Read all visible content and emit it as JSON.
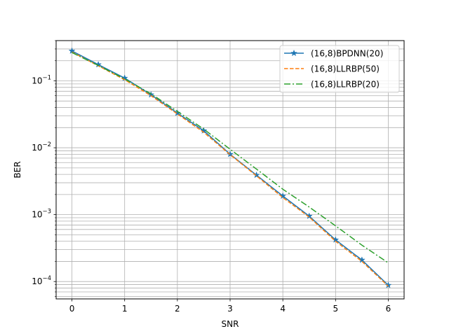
{
  "chart_data": {
    "type": "line",
    "title": "",
    "xlabel": "SNR",
    "ylabel": "BER",
    "xlim": [
      -0.3,
      6.3
    ],
    "ylim": [
      5.5e-05,
      0.4
    ],
    "yscale": "log",
    "grid": true,
    "grid_minor_y": true,
    "legend_position": "top-right",
    "x_ticks": [
      0,
      1,
      2,
      3,
      4,
      5,
      6
    ],
    "x_tick_labels": [
      "0",
      "1",
      "2",
      "3",
      "4",
      "5",
      "6"
    ],
    "y_ticks": [
      0.0001,
      0.001,
      0.01,
      0.1
    ],
    "y_tick_labels": [
      {
        "base": "10",
        "exp": "−4"
      },
      {
        "base": "10",
        "exp": "−3"
      },
      {
        "base": "10",
        "exp": "−2"
      },
      {
        "base": "10",
        "exp": "−1"
      }
    ],
    "series": [
      {
        "name": "(16,8)BPDNN(20)",
        "color": "#1f77b4",
        "linestyle": "solid",
        "marker": "star",
        "x": [
          0,
          0.5,
          1,
          1.5,
          2,
          2.5,
          3,
          3.5,
          4,
          4.5,
          5,
          5.5,
          6
        ],
        "y": [
          0.28,
          0.175,
          0.11,
          0.062,
          0.033,
          0.018,
          0.008,
          0.0039,
          0.0019,
          0.00095,
          0.00042,
          0.00021,
          8.8e-05
        ]
      },
      {
        "name": "(16,8)LLRBP(50)",
        "color": "#ff7f0e",
        "linestyle": "dashed",
        "marker": "none",
        "x": [
          0,
          0.5,
          1,
          1.5,
          2,
          2.5,
          3,
          3.5,
          4,
          4.5,
          5,
          5.5,
          6
        ],
        "y": [
          0.27,
          0.168,
          0.104,
          0.06,
          0.032,
          0.017,
          0.0079,
          0.0038,
          0.0018,
          0.00092,
          0.0004,
          0.0002,
          8.5e-05
        ]
      },
      {
        "name": "(16,8)LLRBP(20)",
        "color": "#2ca02c",
        "linestyle": "dashdot",
        "marker": "none",
        "x": [
          0,
          0.5,
          1,
          1.5,
          2,
          2.5,
          3,
          3.5,
          4,
          4.5,
          5,
          5.5,
          6
        ],
        "y": [
          0.265,
          0.17,
          0.107,
          0.064,
          0.035,
          0.019,
          0.0095,
          0.0048,
          0.0024,
          0.0013,
          0.00068,
          0.00035,
          0.00019
        ]
      }
    ]
  }
}
